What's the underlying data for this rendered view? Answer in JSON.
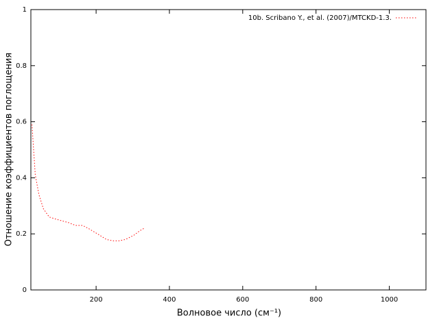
{
  "chart_data": {
    "type": "line",
    "xlabel": "Волновое число (см⁻¹)",
    "ylabel": "Отношение коэффициентов поглощения",
    "x": [
      25,
      34,
      44,
      56,
      72,
      97,
      125,
      144,
      163,
      178,
      191,
      210,
      228,
      247,
      262,
      280,
      303,
      318,
      331
    ],
    "series": [
      {
        "name": "10b. Scribano Y., et al. (2007)/MTCKD-1.3.",
        "color": "#ff0000",
        "values": [
          0.59,
          0.41,
          0.34,
          0.29,
          0.26,
          0.25,
          0.24,
          0.23,
          0.23,
          0.22,
          0.21,
          0.195,
          0.18,
          0.175,
          0.175,
          0.18,
          0.195,
          0.21,
          0.22
        ]
      }
    ],
    "xlim": [
      22,
      1100
    ],
    "xticks": [
      200,
      400,
      600,
      800,
      1000
    ],
    "ylim": [
      0,
      1
    ],
    "yticks": [
      0,
      0.2,
      0.4,
      0.6,
      0.8,
      1
    ],
    "legend": "top-right",
    "grid": false
  }
}
